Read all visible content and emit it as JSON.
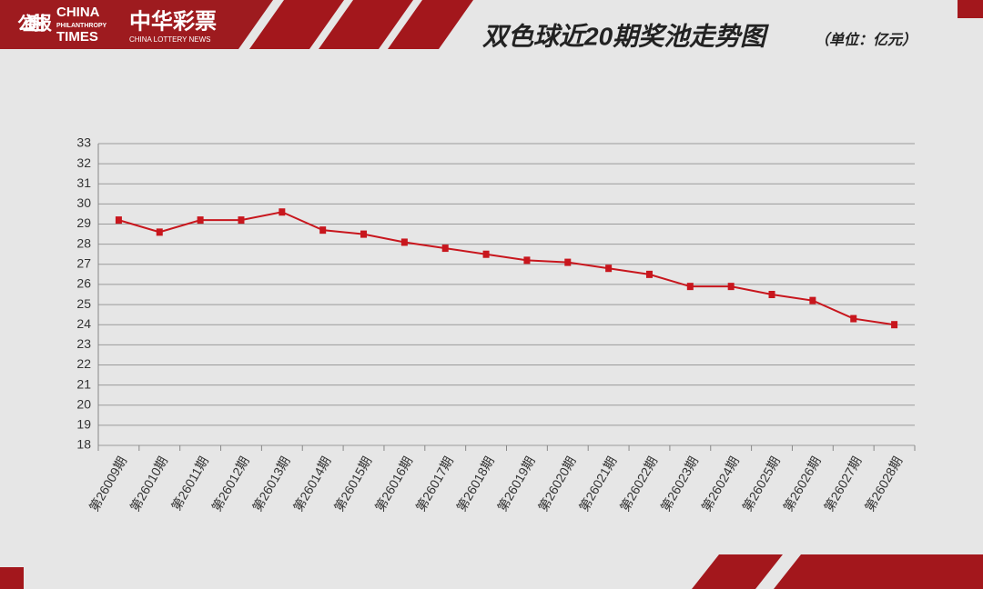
{
  "branding": {
    "logo_cn": "公益时报",
    "logo_en_top": "CHINA",
    "logo_en_mid": "PHILANTHROPY",
    "logo_en_bottom": "TIMES",
    "partner_cn": "中华彩票",
    "partner_en": "CHINA LOTTERY NEWS"
  },
  "chart_data": {
    "type": "line",
    "title": "双色球近20期奖池走势图",
    "subtitle": "（单位：亿元）",
    "categories": [
      "第26009期",
      "第26010期",
      "第26011期",
      "第26012期",
      "第26013期",
      "第26014期",
      "第26015期",
      "第26016期",
      "第26017期",
      "第26018期",
      "第26019期",
      "第26020期",
      "第26021期",
      "第26022期",
      "第26023期",
      "第26024期",
      "第26025期",
      "第26026期",
      "第26027期",
      "第26028期"
    ],
    "values": [
      29.2,
      28.6,
      29.2,
      29.2,
      29.6,
      28.7,
      28.5,
      28.1,
      27.8,
      27.5,
      27.2,
      27.1,
      26.8,
      26.5,
      25.9,
      25.9,
      25.5,
      25.2,
      24.3,
      24.0
    ],
    "color": "#c8161d",
    "ylim": [
      18,
      33
    ],
    "yticks": [
      18,
      19,
      20,
      21,
      22,
      23,
      24,
      25,
      26,
      27,
      28,
      29,
      30,
      31,
      32,
      33
    ],
    "grid": true
  }
}
